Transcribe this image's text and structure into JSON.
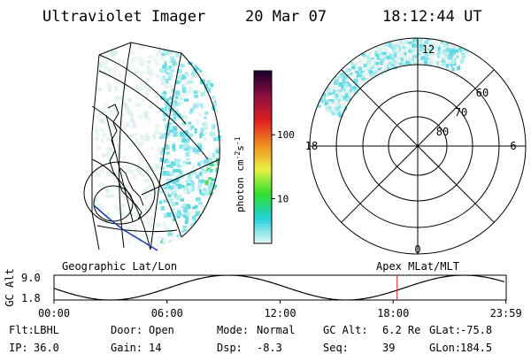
{
  "header": {
    "instrument": "Ultraviolet Imager",
    "date": "20 Mar 07",
    "time": "18:12:44 UT"
  },
  "colorbar": {
    "label": "photon cm",
    "label_exp": "-2",
    "label_s": "s",
    "label_s_exp": "-1",
    "ticks": [
      {
        "label": "100",
        "value": 100
      },
      {
        "label": "10",
        "value": 10
      }
    ],
    "scale": "log",
    "range": [
      2,
      1000
    ],
    "colors": [
      "#e0f4f4",
      "#20d0d8",
      "#30e030",
      "#e8f040",
      "#f09020",
      "#e02020",
      "#901040",
      "#200030"
    ]
  },
  "geo_map": {
    "title": "Geographic Lat/Lon"
  },
  "polar_plot": {
    "title": "Apex MLat/MLT",
    "mlt_labels": {
      "top": "12",
      "left": "18",
      "right": "6",
      "bottom": "0"
    },
    "mlat_labels": [
      "60",
      "70",
      "80"
    ]
  },
  "altitude_panel": {
    "ylabel": "GC Alt",
    "ymax": "9.0",
    "ymin": "1.8",
    "xticks": [
      "00:00",
      "06:00",
      "12:00",
      "18:00",
      "23:59"
    ],
    "current_time_hours": 18.21,
    "marker_color": "#d02020"
  },
  "status": {
    "row1": [
      {
        "key": "Flt:",
        "value": "LBHL"
      },
      {
        "key": "Door:",
        "value": "Open"
      },
      {
        "key": "Mode:",
        "value": "Normal"
      },
      {
        "key": "GC Alt:",
        "value": "6.2 Re"
      },
      {
        "key": "GLat:",
        "value": "-75.8"
      }
    ],
    "row2": [
      {
        "key": "IP:",
        "value": "36.0"
      },
      {
        "key": "Gain:",
        "value": "14"
      },
      {
        "key": "Dsp:",
        "value": "-8.3"
      },
      {
        "key": "Seq:",
        "value": "39"
      },
      {
        "key": "GLon:",
        "value": "184.5"
      }
    ]
  }
}
